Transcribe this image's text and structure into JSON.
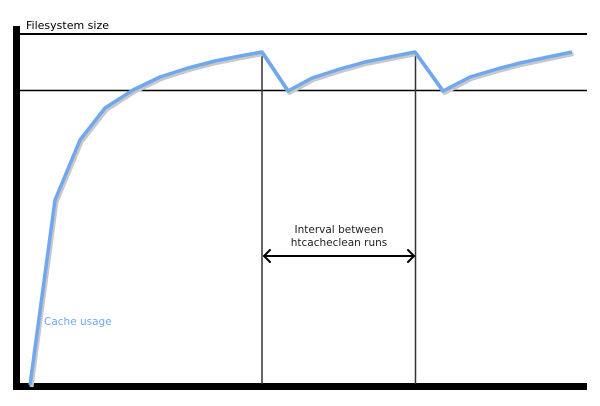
{
  "diagram": {
    "y_axis_label": "Filesystem size",
    "curve_label": "Cache usage",
    "interval_label_line1": "Interval between",
    "interval_label_line2": "htcacheclean runs",
    "colors": {
      "curve": "#6fa8ef",
      "curve_shadow": "#c8c8c8",
      "curve_label": "#6fa8ef",
      "axes": "#000000"
    }
  }
}
